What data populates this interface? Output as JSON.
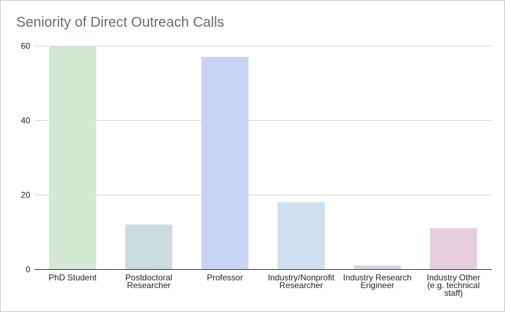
{
  "chart_data": {
    "type": "bar",
    "title": "Seniority of Direct Outreach Calls",
    "xlabel": "",
    "ylabel": "",
    "categories": [
      "PhD Student",
      "Postdoctoral Researcher",
      "Professor",
      "Industry/Nonprofit Researcher",
      "Industry Research Engineer",
      "Industry Other (e.g. technical staff)"
    ],
    "category_label_lines": [
      [
        "PhD Student"
      ],
      [
        "Postdoctoral",
        "Researcher"
      ],
      [
        "Professor"
      ],
      [
        "Industry/Nonprofit",
        "Researcher"
      ],
      [
        "Industry Research",
        "Engineer"
      ],
      [
        "Industry Other",
        "(e.g. technical",
        "staff)"
      ]
    ],
    "values": [
      60,
      12,
      57,
      18,
      1,
      11
    ],
    "colors": [
      "#d5e8d4",
      "#ccdbdf",
      "#c9d4f5",
      "#cfdff0",
      "#dcd4e4",
      "#e6cedb"
    ],
    "ylim": [
      0,
      60
    ],
    "yticks": [
      0,
      20,
      40,
      60
    ],
    "grid": true,
    "legend": "none"
  }
}
